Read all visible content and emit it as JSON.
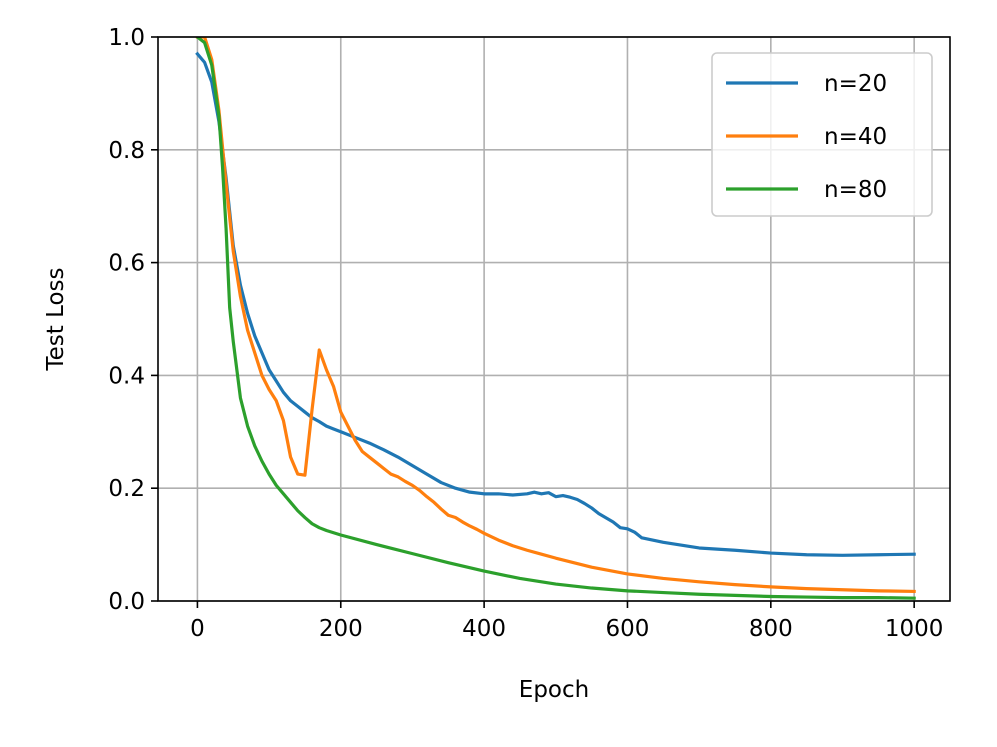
{
  "chart_data": {
    "type": "line",
    "title": "",
    "xlabel": "Epoch",
    "ylabel": "Test Loss",
    "xlim": [
      -55,
      1050
    ],
    "ylim": [
      0,
      1.0
    ],
    "xticks": [
      0,
      200,
      400,
      600,
      800,
      1000
    ],
    "xtick_labels": [
      "0",
      "200",
      "400",
      "600",
      "800",
      "1000"
    ],
    "yticks": [
      0.0,
      0.2,
      0.4,
      0.6,
      0.8,
      1.0
    ],
    "ytick_labels": [
      "0.0",
      "0.2",
      "0.4",
      "0.6",
      "0.8",
      "1.0"
    ],
    "grid": true,
    "legend_position": "top-right",
    "series": [
      {
        "name": "n=20",
        "color": "#1f77b4",
        "x": [
          0,
          10,
          20,
          30,
          40,
          50,
          60,
          70,
          80,
          90,
          100,
          110,
          120,
          130,
          140,
          150,
          160,
          170,
          180,
          190,
          200,
          220,
          240,
          260,
          280,
          300,
          320,
          340,
          360,
          380,
          400,
          420,
          440,
          460,
          470,
          480,
          490,
          500,
          510,
          520,
          530,
          540,
          550,
          560,
          580,
          590,
          600,
          610,
          620,
          650,
          680,
          700,
          750,
          800,
          850,
          900,
          950,
          1000
        ],
        "values": [
          0.97,
          0.955,
          0.92,
          0.85,
          0.75,
          0.63,
          0.56,
          0.51,
          0.47,
          0.44,
          0.41,
          0.39,
          0.37,
          0.355,
          0.345,
          0.335,
          0.325,
          0.318,
          0.31,
          0.305,
          0.3,
          0.29,
          0.28,
          0.268,
          0.255,
          0.24,
          0.225,
          0.21,
          0.2,
          0.193,
          0.19,
          0.19,
          0.188,
          0.19,
          0.193,
          0.19,
          0.192,
          0.185,
          0.187,
          0.184,
          0.18,
          0.173,
          0.165,
          0.155,
          0.14,
          0.13,
          0.128,
          0.122,
          0.112,
          0.104,
          0.098,
          0.094,
          0.09,
          0.085,
          0.082,
          0.081,
          0.082,
          0.083
        ]
      },
      {
        "name": "n=40",
        "color": "#ff7f0e",
        "x": [
          0,
          10,
          20,
          30,
          40,
          50,
          60,
          70,
          80,
          90,
          100,
          110,
          120,
          130,
          140,
          150,
          160,
          170,
          180,
          190,
          200,
          210,
          220,
          230,
          240,
          250,
          260,
          270,
          280,
          290,
          300,
          310,
          320,
          330,
          340,
          350,
          360,
          370,
          380,
          390,
          400,
          420,
          440,
          460,
          480,
          500,
          550,
          600,
          650,
          700,
          750,
          800,
          850,
          900,
          950,
          1000
        ],
        "values": [
          1.0,
          1.0,
          0.96,
          0.87,
          0.74,
          0.62,
          0.54,
          0.48,
          0.44,
          0.4,
          0.375,
          0.355,
          0.32,
          0.255,
          0.225,
          0.223,
          0.34,
          0.445,
          0.41,
          0.38,
          0.335,
          0.31,
          0.285,
          0.265,
          0.255,
          0.245,
          0.235,
          0.225,
          0.22,
          0.212,
          0.205,
          0.196,
          0.185,
          0.175,
          0.163,
          0.152,
          0.148,
          0.14,
          0.133,
          0.127,
          0.12,
          0.108,
          0.098,
          0.09,
          0.083,
          0.076,
          0.06,
          0.048,
          0.04,
          0.034,
          0.029,
          0.025,
          0.022,
          0.02,
          0.018,
          0.017
        ]
      },
      {
        "name": "n=80",
        "color": "#2ca02c",
        "x": [
          0,
          10,
          20,
          30,
          35,
          40,
          45,
          50,
          60,
          70,
          80,
          90,
          100,
          110,
          120,
          130,
          140,
          150,
          160,
          170,
          180,
          200,
          250,
          300,
          350,
          400,
          450,
          500,
          550,
          600,
          650,
          700,
          750,
          800,
          850,
          900,
          950,
          1000
        ],
        "values": [
          1.0,
          0.99,
          0.95,
          0.86,
          0.77,
          0.66,
          0.52,
          0.46,
          0.36,
          0.31,
          0.275,
          0.248,
          0.225,
          0.205,
          0.19,
          0.175,
          0.16,
          0.148,
          0.137,
          0.13,
          0.125,
          0.117,
          0.1,
          0.084,
          0.068,
          0.053,
          0.04,
          0.03,
          0.023,
          0.018,
          0.015,
          0.012,
          0.01,
          0.008,
          0.007,
          0.006,
          0.006,
          0.005
        ]
      }
    ]
  }
}
